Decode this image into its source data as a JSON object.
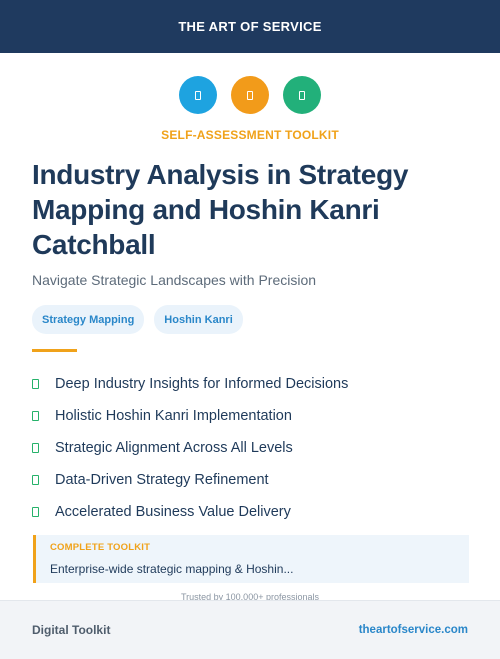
{
  "header": {
    "brand": "THE ART OF SERVICE"
  },
  "icons": [
    {
      "name": "clipboard-icon",
      "color": "#1ea3e0"
    },
    {
      "name": "document-icon",
      "color": "#f29b1a"
    },
    {
      "name": "file-icon",
      "color": "#22b07a"
    }
  ],
  "eyebrow": "SELF-ASSESSMENT TOOLKIT",
  "title": "Industry Analysis in Strategy Mapping and Hoshin Kanri Catchball",
  "subtitle": "Navigate Strategic Landscapes with Precision",
  "tags": [
    "Strategy Mapping",
    "Hoshin Kanri"
  ],
  "features": [
    "Deep Industry Insights for Informed Decisions",
    "Holistic Hoshin Kanri Implementation",
    "Strategic Alignment Across All Levels",
    "Data-Driven Strategy Refinement",
    "Accelerated Business Value Delivery"
  ],
  "callout": {
    "label": "COMPLETE TOOLKIT",
    "text": "Enterprise-wide strategic mapping & Hoshin..."
  },
  "trusted": "Trusted by 100,000+ professionals",
  "footer": {
    "left": "Digital Toolkit",
    "right": "theartofservice.com"
  },
  "colors": {
    "navy": "#1f3a5f",
    "accent_orange": "#f0a21a",
    "accent_blue": "#2a87c9",
    "check_green": "#26b26a"
  }
}
